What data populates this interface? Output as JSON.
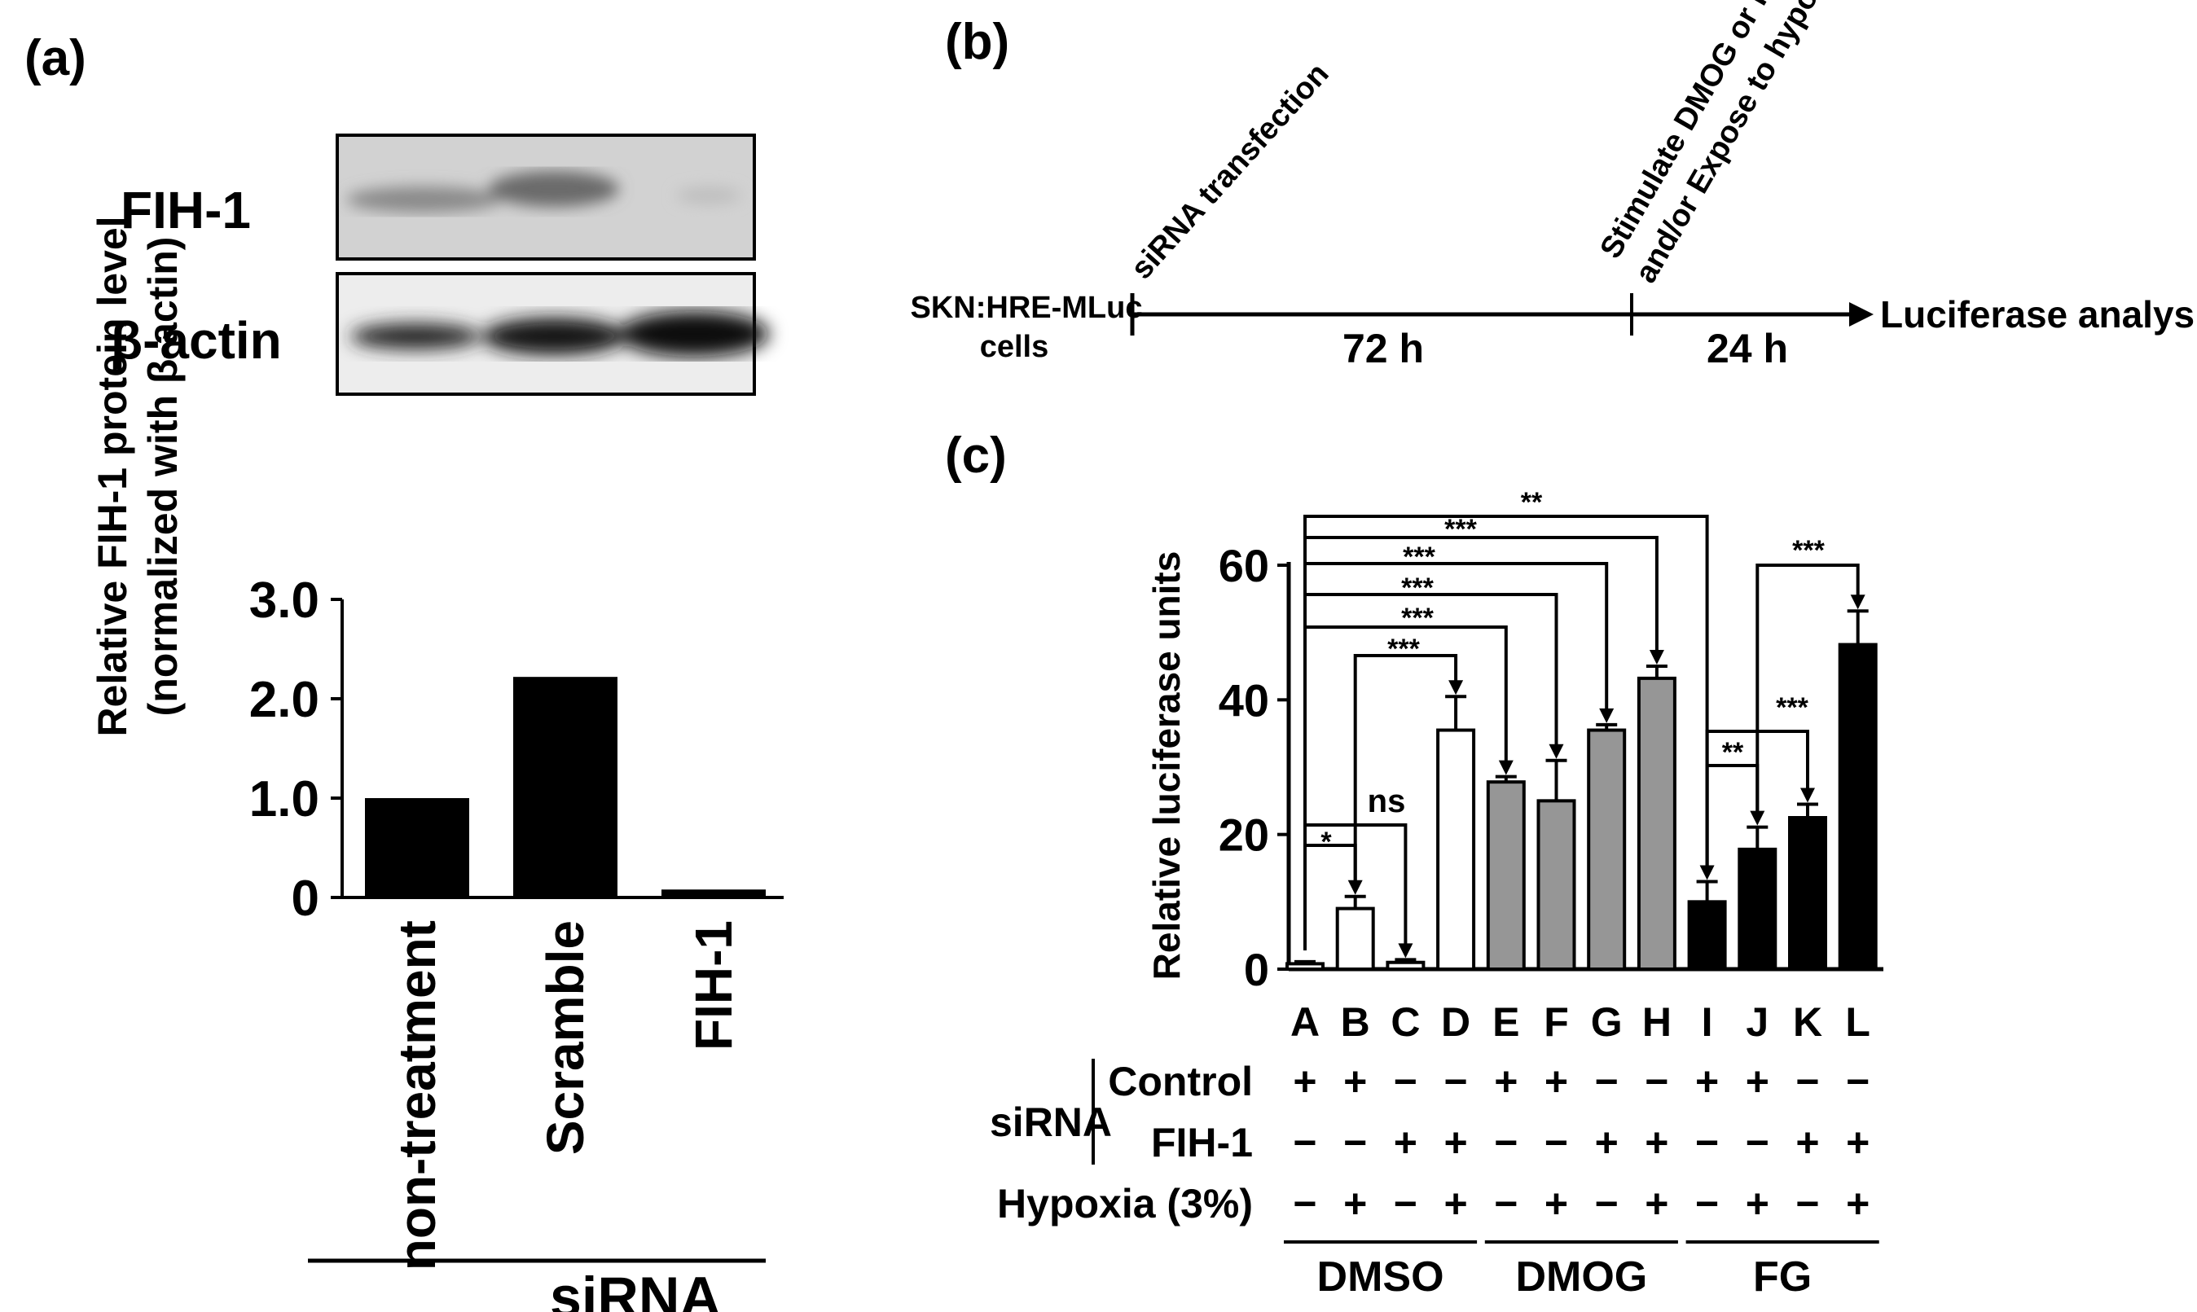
{
  "panels": {
    "a": "(a)",
    "b": "(b)",
    "c": "(c)"
  },
  "blot": {
    "labels": [
      "FIH-1",
      "β-actin"
    ]
  },
  "timeline": {
    "start": [
      "SKN:HRE-MLuc",
      "cells"
    ],
    "step1": "siRNA transfection",
    "step2": [
      "Stimulate DMOG or FG",
      "and/or Expose to hypoxia"
    ],
    "duration1": "72 h",
    "duration2": "24 h",
    "end": "Luciferase analysis"
  },
  "chart_a": {
    "ylabel": [
      "Relative FIH-1 protein level",
      "(normalized with β-actin)"
    ],
    "group_label": "siRNA"
  },
  "chart_c": {
    "ylabel": "Relative luciferase units",
    "row_labels": {
      "sirna": "siRNA",
      "control": "Control",
      "fih": "FIH-1",
      "hypoxia": "Hypoxia (3%)"
    },
    "groups": [
      "DMSO",
      "DMOG",
      "FG"
    ],
    "signs": {
      "control": [
        "+",
        "+",
        "−",
        "−",
        "+",
        "+",
        "−",
        "−",
        "+",
        "+",
        "−",
        "−"
      ],
      "fih": [
        "−",
        "−",
        "+",
        "+",
        "−",
        "−",
        "+",
        "+",
        "−",
        "−",
        "+",
        "+"
      ],
      "hypoxia": [
        "−",
        "+",
        "−",
        "+",
        "−",
        "+",
        "−",
        "+",
        "−",
        "+",
        "−",
        "+"
      ]
    },
    "comparisons": [
      {
        "from": "A",
        "to": "B",
        "label": "*"
      },
      {
        "from": "A",
        "to": "C",
        "label": "ns"
      },
      {
        "from": "B",
        "to": "D",
        "label": "***"
      },
      {
        "from": "A",
        "to": "E",
        "label": "***"
      },
      {
        "from": "A",
        "to": "F",
        "label": "***"
      },
      {
        "from": "A",
        "to": "G",
        "label": "***"
      },
      {
        "from": "A",
        "to": "H",
        "label": "***"
      },
      {
        "from": "A",
        "to": "I",
        "label": "**"
      },
      {
        "from": "I",
        "to": "J",
        "label": "**"
      },
      {
        "from": "I",
        "to": "K",
        "label": "***"
      },
      {
        "from": "J",
        "to": "L",
        "label": "***"
      }
    ]
  },
  "chart_data": [
    {
      "type": "bar",
      "categories": [
        "non-treatment",
        "Scramble",
        "FIH-1"
      ],
      "values": [
        1.0,
        2.22,
        0.08
      ],
      "xlabel": "",
      "ylabel": "Relative FIH-1 protein level (normalized with β-actin)",
      "ylim": [
        0,
        3.0
      ],
      "yticks": [
        "0",
        "1.0",
        "2.0",
        "3.0"
      ],
      "colors": [
        "#000000",
        "#000000",
        "#000000"
      ]
    },
    {
      "type": "bar",
      "categories": [
        "A",
        "B",
        "C",
        "D",
        "E",
        "F",
        "G",
        "H",
        "I",
        "J",
        "K",
        "L"
      ],
      "values": [
        0.8,
        9.0,
        1.0,
        35.5,
        27.8,
        25.0,
        35.5,
        43.2,
        10.0,
        17.8,
        22.5,
        48.2
      ],
      "errors": [
        0.3,
        1.8,
        0.4,
        5.0,
        0.8,
        6.0,
        0.8,
        1.8,
        3.0,
        3.3,
        2.0,
        5.0
      ],
      "fills": [
        "#ffffff",
        "#ffffff",
        "#ffffff",
        "#ffffff",
        "#969696",
        "#969696",
        "#969696",
        "#969696",
        "#000000",
        "#000000",
        "#000000",
        "#000000"
      ],
      "ylabel": "Relative luciferase units",
      "ylim": [
        0,
        60
      ],
      "yticks": [
        0,
        20,
        40,
        60
      ]
    }
  ]
}
